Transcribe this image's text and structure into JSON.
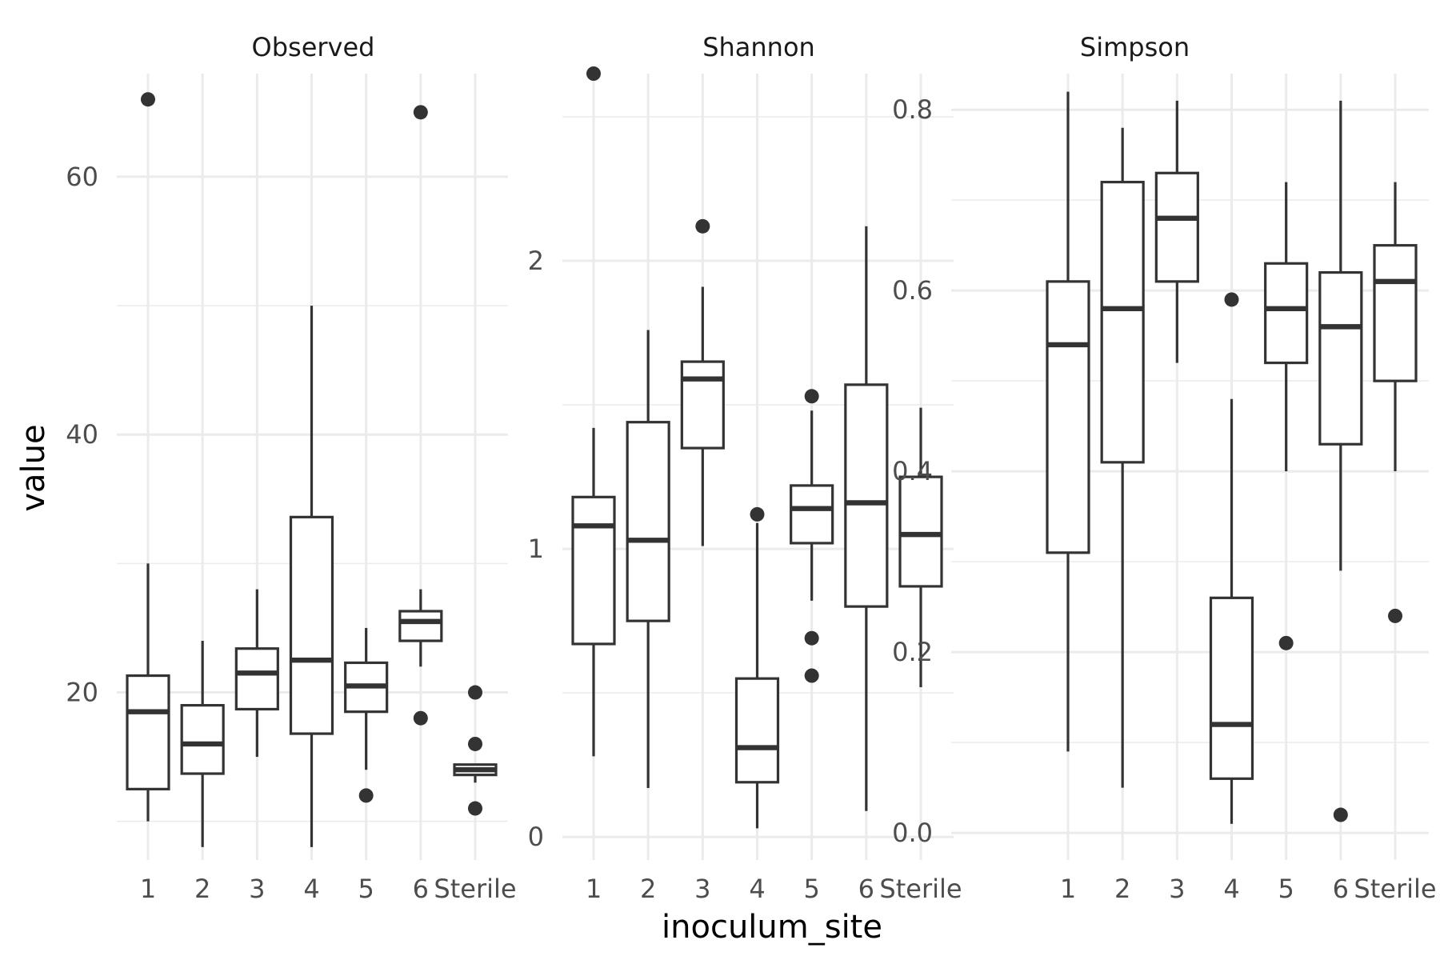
{
  "chart_data": {
    "type": "box",
    "xlabel": "inoculum_site",
    "ylabel": "value",
    "categories": [
      "1",
      "2",
      "3",
      "4",
      "5",
      "6",
      "Sterile"
    ],
    "grid": true,
    "legend": "none",
    "colors": {
      "box_stroke": "#333333",
      "box_fill": "#ffffff",
      "grid": "#ebebeb"
    },
    "panels": [
      {
        "title": "Observed",
        "ylim": [
          7,
          68
        ],
        "yticks": [
          20,
          40,
          60
        ],
        "yticks_minor": [
          10,
          30,
          50
        ],
        "boxes": [
          {
            "category": "1",
            "min": 10,
            "q1": 12.5,
            "median": 18.5,
            "q3": 21.3,
            "max": 30,
            "outliers": [
              66
            ]
          },
          {
            "category": "2",
            "min": 8,
            "q1": 13.7,
            "median": 16,
            "q3": 19,
            "max": 24,
            "outliers": []
          },
          {
            "category": "3",
            "min": 15,
            "q1": 18.7,
            "median": 21.5,
            "q3": 23.4,
            "max": 28,
            "outliers": []
          },
          {
            "category": "4",
            "min": 8,
            "q1": 16.8,
            "median": 22.5,
            "q3": 33.6,
            "max": 50,
            "outliers": []
          },
          {
            "category": "5",
            "min": 14,
            "q1": 18.5,
            "median": 20.5,
            "q3": 22.3,
            "max": 25,
            "outliers": [
              12
            ]
          },
          {
            "category": "6",
            "min": 22,
            "q1": 24,
            "median": 25.5,
            "q3": 26.3,
            "max": 28,
            "outliers": [
              18,
              65
            ]
          },
          {
            "category": "Sterile",
            "min": 13,
            "q1": 13.6,
            "median": 14,
            "q3": 14.4,
            "max": 14.4,
            "outliers": [
              11,
              16,
              20
            ]
          }
        ]
      },
      {
        "title": "Shannon",
        "ylim": [
          -0.08,
          2.65
        ],
        "yticks": [
          0,
          1,
          2
        ],
        "yticks_minor": [
          0.5,
          1.5,
          2.5
        ],
        "boxes": [
          {
            "category": "1",
            "min": 0.28,
            "q1": 0.67,
            "median": 1.08,
            "q3": 1.18,
            "max": 1.42,
            "outliers": [
              2.65
            ]
          },
          {
            "category": "2",
            "min": 0.17,
            "q1": 0.75,
            "median": 1.03,
            "q3": 1.44,
            "max": 1.76,
            "outliers": []
          },
          {
            "category": "3",
            "min": 1.01,
            "q1": 1.35,
            "median": 1.59,
            "q3": 1.65,
            "max": 1.91,
            "outliers": [
              2.12
            ]
          },
          {
            "category": "4",
            "min": 0.03,
            "q1": 0.19,
            "median": 0.31,
            "q3": 0.55,
            "max": 1.09,
            "outliers": [
              1.12
            ]
          },
          {
            "category": "5",
            "min": 0.82,
            "q1": 1.02,
            "median": 1.14,
            "q3": 1.22,
            "max": 1.48,
            "outliers": [
              0.56,
              0.69,
              1.53
            ]
          },
          {
            "category": "6",
            "min": 0.09,
            "q1": 0.8,
            "median": 1.16,
            "q3": 1.57,
            "max": 2.12,
            "outliers": []
          },
          {
            "category": "Sterile",
            "min": 0.52,
            "q1": 0.87,
            "median": 1.05,
            "q3": 1.25,
            "max": 1.49,
            "outliers": []
          }
        ]
      },
      {
        "title": "Simpson",
        "ylim": [
          -0.03,
          0.84
        ],
        "yticks": [
          0.0,
          0.2,
          0.4,
          0.6,
          0.8
        ],
        "yticks_minor": [
          0.1,
          0.3,
          0.5,
          0.7
        ],
        "boxes": [
          {
            "category": "1",
            "min": 0.09,
            "q1": 0.31,
            "median": 0.54,
            "q3": 0.61,
            "max": 0.82,
            "outliers": []
          },
          {
            "category": "2",
            "min": 0.05,
            "q1": 0.41,
            "median": 0.58,
            "q3": 0.72,
            "max": 0.78,
            "outliers": []
          },
          {
            "category": "3",
            "min": 0.52,
            "q1": 0.61,
            "median": 0.68,
            "q3": 0.73,
            "max": 0.81,
            "outliers": []
          },
          {
            "category": "4",
            "min": 0.01,
            "q1": 0.06,
            "median": 0.12,
            "q3": 0.26,
            "max": 0.48,
            "outliers": [
              0.59
            ]
          },
          {
            "category": "5",
            "min": 0.4,
            "q1": 0.52,
            "median": 0.58,
            "q3": 0.63,
            "max": 0.72,
            "outliers": [
              0.21
            ]
          },
          {
            "category": "6",
            "min": 0.29,
            "q1": 0.43,
            "median": 0.56,
            "q3": 0.62,
            "max": 0.81,
            "outliers": [
              0.02
            ]
          },
          {
            "category": "Sterile",
            "min": 0.4,
            "q1": 0.5,
            "median": 0.61,
            "q3": 0.65,
            "max": 0.72,
            "outliers": [
              0.24
            ]
          }
        ]
      }
    ]
  }
}
